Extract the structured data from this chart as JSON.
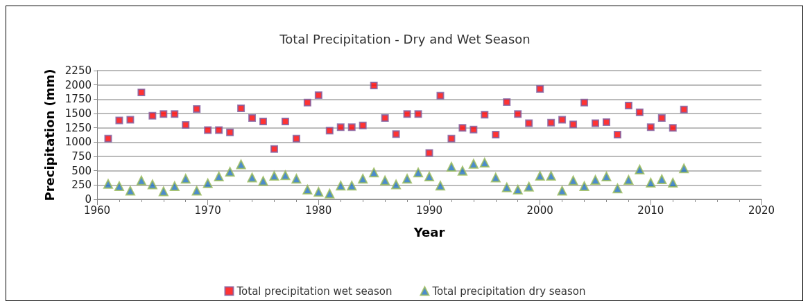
{
  "chart_data": {
    "type": "scatter",
    "title": "Total Precipitation - Dry and Wet Season",
    "xlabel": "Year",
    "ylabel": "Precipitation (mm)",
    "x": [
      1961,
      1962,
      1963,
      1964,
      1965,
      1966,
      1967,
      1968,
      1969,
      1970,
      1971,
      1972,
      1973,
      1974,
      1975,
      1976,
      1977,
      1978,
      1979,
      1980,
      1981,
      1982,
      1983,
      1984,
      1985,
      1986,
      1987,
      1988,
      1989,
      1990,
      1991,
      1992,
      1993,
      1994,
      1995,
      1996,
      1997,
      1998,
      1999,
      2000,
      2001,
      2002,
      2003,
      2004,
      2005,
      2006,
      2007,
      2008,
      2009,
      2010,
      2011,
      2012,
      2013
    ],
    "series": [
      {
        "name": "Total precipitation wet season",
        "color": "#ff0000",
        "marker": "square",
        "values": [
          1060,
          1380,
          1390,
          1870,
          1460,
          1490,
          1490,
          1300,
          1580,
          1210,
          1210,
          1170,
          1590,
          1420,
          1360,
          880,
          1360,
          1060,
          1690,
          1820,
          1200,
          1260,
          1260,
          1290,
          1990,
          1420,
          1140,
          1490,
          1490,
          810,
          1810,
          1060,
          1250,
          1220,
          1480,
          1130,
          1700,
          1490,
          1330,
          1930,
          1340,
          1390,
          1310,
          1690,
          1330,
          1350,
          1130,
          1640,
          1520,
          1260,
          1420,
          1250,
          1570
        ]
      },
      {
        "name": "Total precipitation dry season",
        "color": "#1f6fbf",
        "marker": "triangle",
        "values": [
          270,
          230,
          150,
          330,
          260,
          140,
          230,
          360,
          150,
          280,
          400,
          480,
          610,
          380,
          320,
          410,
          420,
          360,
          170,
          130,
          100,
          240,
          240,
          360,
          470,
          330,
          260,
          360,
          470,
          400,
          240,
          570,
          500,
          620,
          640,
          380,
          210,
          170,
          220,
          410,
          410,
          150,
          330,
          230,
          340,
          400,
          190,
          340,
          520,
          290,
          350,
          290,
          540
        ]
      }
    ],
    "xlim": [
      1960,
      2020
    ],
    "xticks": [
      1960,
      1970,
      1980,
      1990,
      2000,
      2010,
      2020
    ],
    "ylim": [
      0,
      2250
    ],
    "yticks": [
      0,
      250,
      500,
      750,
      1000,
      1250,
      1500,
      1750,
      2000,
      2250
    ],
    "grid": "y",
    "legend": "bottom"
  }
}
